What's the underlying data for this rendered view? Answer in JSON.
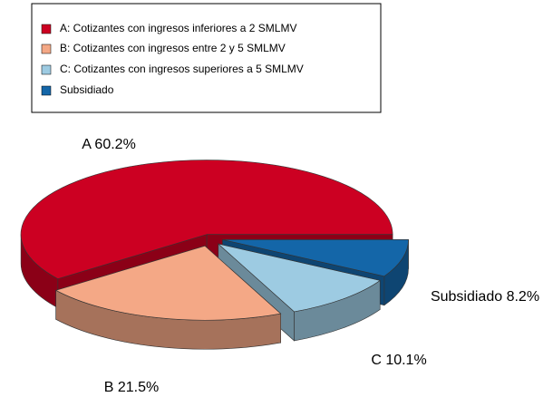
{
  "chart_data": {
    "type": "pie",
    "categories": [
      "A: Cotizantes con ingresos inferiores a 2 SMLMV",
      "B: Cotizantes con ingresos entre 2 y 5 SMLMV",
      "C: Cotizantes con ingresos superiores a 5 SMLMV",
      "Subsidiado"
    ],
    "values": [
      60.2,
      21.5,
      10.1,
      8.2
    ],
    "value_labels": [
      "A 60.2%",
      "B 21.5%",
      "C 10.1%",
      "Subsidiado 8.2%"
    ],
    "colors": [
      "#cc0022",
      "#f4a886",
      "#9dcbe2",
      "#1466a8"
    ],
    "legend": "top-left"
  }
}
